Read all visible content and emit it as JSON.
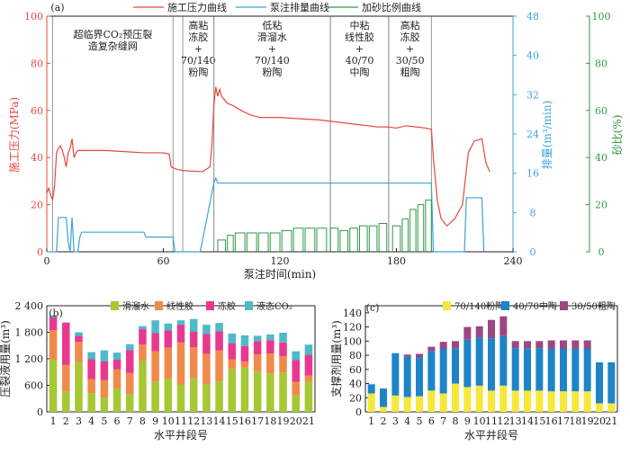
{
  "chart_data": [
    {
      "panel": "(a)",
      "type": "line",
      "xlabel": "泵注时间(min)",
      "x_ticks": [
        "0",
        "60",
        "120",
        "180",
        "240"
      ],
      "xlim": [
        0,
        240
      ],
      "ylabel_left": "施工压力(MPa)",
      "y_left_ticks": [
        "0",
        "20",
        "40",
        "60",
        "80",
        "100"
      ],
      "ylim_left": [
        0,
        100
      ],
      "ylabel_mid": "排量(m³/min)",
      "y_mid_ticks": [
        "0",
        "8",
        "16",
        "24",
        "32",
        "40",
        "48"
      ],
      "ylim_mid": [
        0,
        48
      ],
      "ylabel_right": "砂比(%)",
      "y_right_ticks": [
        "0",
        "20",
        "40",
        "60",
        "80",
        "100"
      ],
      "ylim_right": [
        0,
        100
      ],
      "legend": [
        {
          "label": "施工压力曲线",
          "color": "#e8483e"
        },
        {
          "label": "泵注排量曲线",
          "color": "#3ca3d8"
        },
        {
          "label": "加砂比例曲线",
          "color": "#2e9a45"
        }
      ],
      "stages": [
        {
          "x": [
            3,
            65
          ],
          "lines": [
            "超临界CO₂预压裂",
            "造复杂缝网"
          ]
        },
        {
          "x": [
            70,
            86
          ],
          "lines": [
            "高粘",
            "冻胶",
            "+",
            "70/140",
            "粉陶"
          ]
        },
        {
          "x": [
            86,
            146
          ],
          "lines": [
            "低粘",
            "滑溜水",
            "+",
            "70/140",
            "粉陶"
          ]
        },
        {
          "x": [
            146,
            176
          ],
          "lines": [
            "中粘",
            "线性胶",
            "+",
            "40/70",
            "中陶"
          ]
        },
        {
          "x": [
            176,
            198
          ],
          "lines": [
            "高粘",
            "冻胶",
            "+",
            "30/50",
            "粗陶"
          ]
        }
      ],
      "series": [
        {
          "name": "施工压力曲线",
          "axis": "left",
          "points": [
            [
              0,
              25
            ],
            [
              1,
              27
            ],
            [
              2,
              24
            ],
            [
              3,
              22
            ],
            [
              4,
              28
            ],
            [
              5,
              42
            ],
            [
              6,
              44
            ],
            [
              7,
              45
            ],
            [
              8,
              43
            ],
            [
              9,
              40
            ],
            [
              10,
              36
            ],
            [
              11,
              42
            ],
            [
              12,
              44
            ],
            [
              13,
              48
            ],
            [
              14,
              40
            ],
            [
              15,
              42
            ],
            [
              16,
              43
            ],
            [
              17,
              43
            ],
            [
              20,
              43
            ],
            [
              30,
              43
            ],
            [
              40,
              42.5
            ],
            [
              50,
              42
            ],
            [
              60,
              42
            ],
            [
              63,
              41.5
            ],
            [
              64,
              36
            ],
            [
              67,
              35
            ],
            [
              70,
              34.5
            ],
            [
              80,
              34
            ],
            [
              84,
              36
            ],
            [
              85,
              45
            ],
            [
              86,
              62
            ],
            [
              87,
              70
            ],
            [
              88,
              66
            ],
            [
              89,
              69
            ],
            [
              90,
              66
            ],
            [
              93,
              63
            ],
            [
              96,
              62
            ],
            [
              100,
              60
            ],
            [
              105,
              58
            ],
            [
              110,
              57
            ],
            [
              120,
              57
            ],
            [
              130,
              56.5
            ],
            [
              140,
              56
            ],
            [
              150,
              55
            ],
            [
              160,
              54
            ],
            [
              165,
              53.5
            ],
            [
              170,
              53
            ],
            [
              175,
              53
            ],
            [
              180,
              52.5
            ],
            [
              185,
              53.5
            ],
            [
              190,
              53
            ],
            [
              195,
              52.5
            ],
            [
              198,
              52
            ],
            [
              199,
              40
            ],
            [
              201,
              22
            ],
            [
              203,
              14
            ],
            [
              206,
              11
            ],
            [
              210,
              14
            ],
            [
              214,
              20
            ],
            [
              217,
              42
            ],
            [
              220,
              47
            ],
            [
              224,
              48
            ],
            [
              226,
              38
            ],
            [
              228,
              34
            ]
          ]
        },
        {
          "name": "泵注排量曲线",
          "axis": "mid",
          "points": [
            [
              0,
              0
            ],
            [
              5,
              0
            ],
            [
              6,
              7
            ],
            [
              10,
              7
            ],
            [
              11,
              2
            ],
            [
              12,
              0
            ],
            [
              13,
              7
            ],
            [
              14,
              0
            ],
            [
              16,
              0
            ],
            [
              17,
              3
            ],
            [
              18,
              4
            ],
            [
              50,
              4
            ],
            [
              51,
              3
            ],
            [
              65,
              3
            ],
            [
              66,
              0
            ],
            [
              72,
              0
            ],
            [
              79,
              0
            ],
            [
              86,
              14
            ],
            [
              87,
              15
            ],
            [
              88,
              14
            ],
            [
              198,
              14
            ],
            [
              199,
              0
            ],
            [
              215,
              0
            ],
            [
              216,
              11
            ],
            [
              218,
              11
            ],
            [
              224,
              11
            ],
            [
              225,
              0
            ]
          ]
        },
        {
          "name": "加砂比例曲线",
          "axis": "right",
          "step_bars": [
            [
              88,
              92,
              5
            ],
            [
              93,
              96,
              7
            ],
            [
              97,
              102,
              8
            ],
            [
              103,
              108,
              8
            ],
            [
              109,
              114,
              8
            ],
            [
              115,
              120,
              8
            ],
            [
              121,
              126,
              9
            ],
            [
              127,
              132,
              10
            ],
            [
              133,
              138,
              10
            ],
            [
              139,
              144,
              10
            ],
            [
              146,
              150,
              10
            ],
            [
              151,
              155,
              9
            ],
            [
              156,
              160,
              10
            ],
            [
              161,
              165,
              11
            ],
            [
              166,
              170,
              11
            ],
            [
              171,
              175,
              12
            ],
            [
              178,
              182,
              11
            ],
            [
              183,
              186,
              14
            ],
            [
              187,
              190,
              18
            ],
            [
              191,
              194,
              20
            ],
            [
              195,
              198,
              22
            ]
          ]
        }
      ]
    },
    {
      "panel": "(b)",
      "type": "bar",
      "stacked": true,
      "xlabel": "水平井段号",
      "ylabel": "压裂液用量(m³)",
      "ylim": [
        0,
        2400
      ],
      "y_ticks": [
        "0",
        "600",
        "1 200",
        "1 800",
        "2 400"
      ],
      "categories": [
        "1",
        "2",
        "3",
        "4",
        "5",
        "6",
        "7",
        "8",
        "9",
        "10",
        "11",
        "12",
        "13",
        "14",
        "15",
        "16",
        "17",
        "18",
        "19",
        "20",
        "21"
      ],
      "series": [
        {
          "name": "滑溜水",
          "color": "#a5c833",
          "values": [
            1190,
            460,
            1130,
            420,
            320,
            530,
            400,
            1150,
            690,
            750,
            620,
            760,
            630,
            690,
            970,
            1000,
            920,
            870,
            890,
            370,
            680
          ]
        },
        {
          "name": "线性胶",
          "color": "#f08a4b",
          "values": [
            660,
            600,
            450,
            320,
            400,
            430,
            480,
            370,
            680,
            700,
            950,
            700,
            680,
            700,
            220,
            140,
            380,
            450,
            370,
            310,
            140
          ]
        },
        {
          "name": "冻胶",
          "color": "#e8398f",
          "values": [
            290,
            960,
            140,
            450,
            420,
            220,
            520,
            350,
            410,
            390,
            400,
            350,
            450,
            430,
            360,
            350,
            300,
            300,
            310,
            490,
            470
          ]
        },
        {
          "name": "液态CO₂",
          "color": "#4eb9c8",
          "values": [
            40,
            0,
            80,
            160,
            250,
            160,
            130,
            70,
            290,
            160,
            100,
            290,
            210,
            190,
            220,
            240,
            120,
            130,
            220,
            200,
            230
          ]
        }
      ]
    },
    {
      "panel": "(c)",
      "type": "bar",
      "stacked": true,
      "xlabel": "水平井段号",
      "ylabel": "支撑剂用量(m³)",
      "ylim": [
        0,
        150
      ],
      "y_ticks": [
        "0",
        "20",
        "40",
        "60",
        "80",
        "100",
        "120",
        "140"
      ],
      "categories": [
        "1",
        "2",
        "3",
        "4",
        "5",
        "6",
        "7",
        "8",
        "9",
        "10",
        "11",
        "12",
        "13",
        "14",
        "15",
        "16",
        "17",
        "18",
        "19",
        "20",
        "21"
      ],
      "series": [
        {
          "name": "70/140粉陶",
          "color": "#f5e83a",
          "values": [
            26,
            7,
            23,
            21,
            22,
            30,
            26,
            40,
            35,
            37,
            30,
            37,
            30,
            30,
            30,
            29,
            29,
            29,
            29,
            12,
            12
          ]
        },
        {
          "name": "40/70中陶",
          "color": "#1d84c8",
          "values": [
            13,
            26,
            60,
            57,
            55,
            56,
            63,
            50,
            67,
            68,
            74,
            70,
            60,
            60,
            60,
            60,
            60,
            60,
            60,
            58,
            58
          ]
        },
        {
          "name": "30/50粗陶",
          "color": "#9b4783",
          "values": [
            0,
            0,
            0,
            3,
            5,
            6,
            10,
            10,
            18,
            16,
            26,
            28,
            10,
            10,
            10,
            12,
            12,
            12,
            12,
            0,
            0
          ]
        }
      ]
    }
  ]
}
